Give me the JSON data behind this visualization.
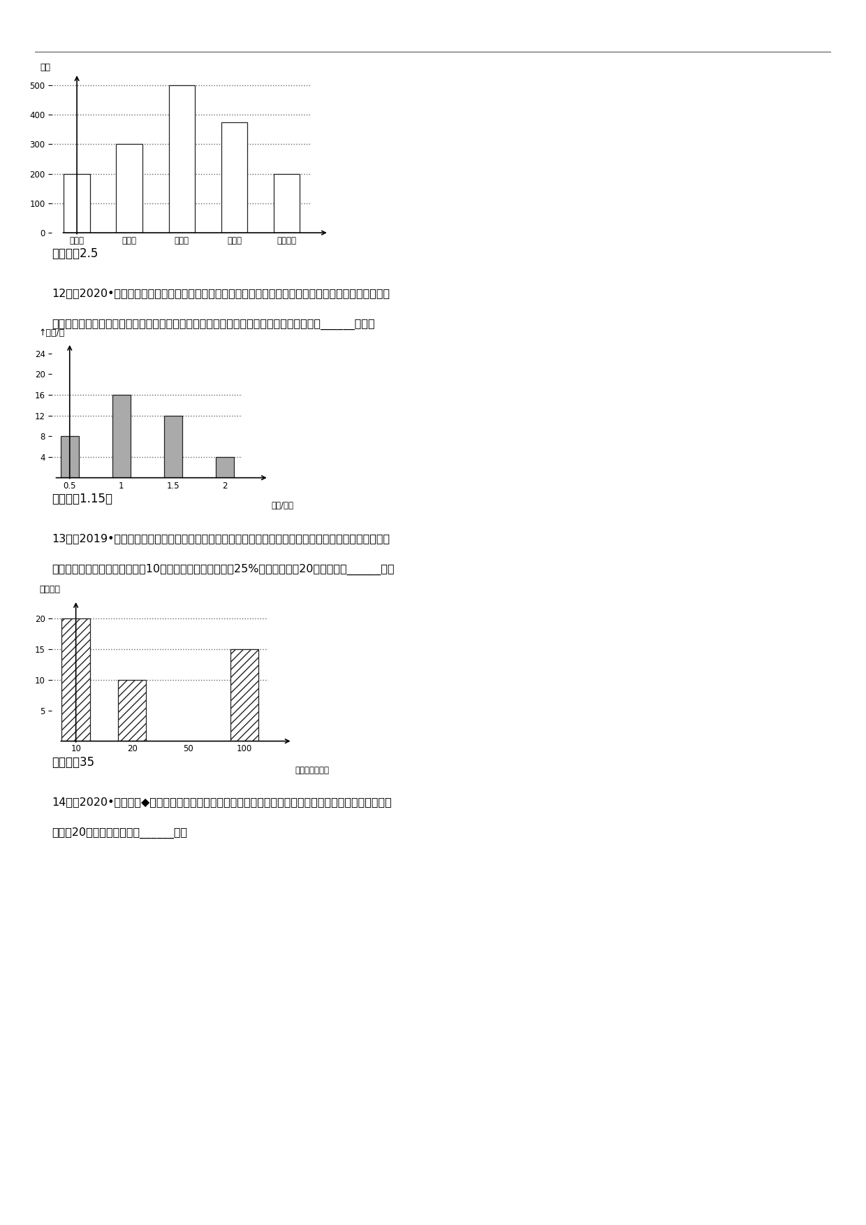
{
  "bg_color": "#ffffff",
  "chart1": {
    "y_label": "人数",
    "categories": [
      "数学类",
      "外语类",
      "文学类",
      "科普类",
      "图书种类"
    ],
    "values": [
      200,
      300,
      500,
      375,
      200
    ],
    "bar_color": "#ffffff",
    "bar_edge": "#222222",
    "dotted_lines": [
      100,
      200,
      300,
      400,
      500
    ],
    "ylim": [
      0,
      540
    ],
    "yticks": [
      0,
      100,
      200,
      300,
      400,
      500
    ],
    "bar_width": 0.5
  },
  "answer1": "【答案】2.5",
  "q12_line1": "12．（2020•山西襄汾初二期末）为了解某班学生体育锻炼的用时情况，收集了该班学生一天用于体育锻炼",
  "q12_line2": "的时间（单位：小时），整理成如图的统计图．则该班学生这天用于体育锻炼的平均时间为______小时．",
  "chart2": {
    "y_label": "↑学生/个",
    "categories": [
      "0.5",
      "1",
      "1.5",
      "2"
    ],
    "values": [
      8,
      16,
      12,
      4
    ],
    "bar_color": "#aaaaaa",
    "bar_edge": "#222222",
    "dotted_lines": [
      4,
      12,
      16
    ],
    "ylim": [
      0,
      26
    ],
    "yticks": [
      4,
      8,
      12,
      16,
      20,
      24
    ],
    "x_label": "时间/小时",
    "bar_width": 0.35
  },
  "answer2": "【答案】1.15．",
  "q13_line1": "13．（2019•河南伊川初二期末）在某公益活动中，小明对本年级同学的捐款情况进行了统计，绘制成如图",
  "q13_line2": "所示的不完整的统计图，其中捐10元的人数占年级总人数的25%，则本次捐款20元的人数为______人．",
  "chart3": {
    "y_label": "捐款人数",
    "categories": [
      "10",
      "20",
      "50",
      "100"
    ],
    "values": [
      20,
      10,
      0,
      15
    ],
    "show_bars": [
      true,
      true,
      false,
      true
    ],
    "hatch": "///",
    "bar_color": "#ffffff",
    "bar_edge": "#222222",
    "dotted_lines": [
      10,
      15,
      20
    ],
    "ylim": [
      0,
      23
    ],
    "yticks": [
      5,
      10,
      15,
      20
    ],
    "x_label": "捐款金额（元）",
    "bar_width": 0.5
  },
  "answer3": "【答案、35",
  "q14_line1": "14．（2020•河南淦滨◆初一期末）小明同学根据全班同学的血型绘制了如图所示的扇形统计图，已知ａ型",
  "q14_line2": "血的有20人，则Ｏ型血的有______人．"
}
